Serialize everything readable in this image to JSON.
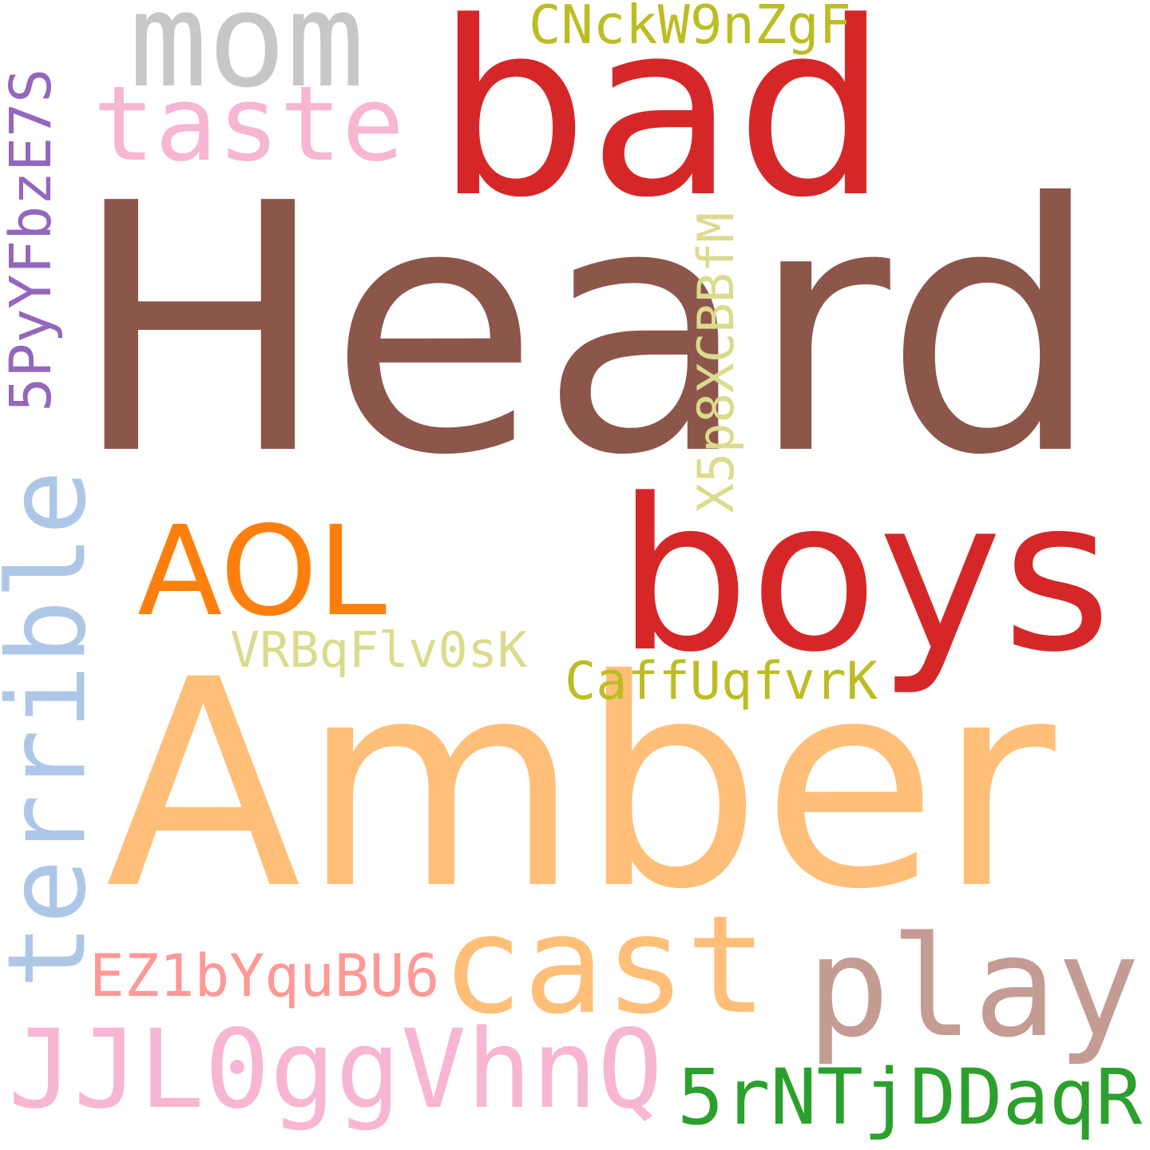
{
  "words": [
    {
      "id": "heard",
      "text": "Heard",
      "color": "#8c564b"
    },
    {
      "id": "amber",
      "text": "Amber",
      "color": "#ffbf79"
    },
    {
      "id": "bad",
      "text": "bad",
      "color": "#d62728"
    },
    {
      "id": "boys",
      "text": "boys",
      "color": "#d62728"
    },
    {
      "id": "mom",
      "text": "mom",
      "color": "#c7c7c7"
    },
    {
      "id": "taste",
      "text": "taste",
      "color": "#f7b6d2"
    },
    {
      "id": "cnckw9nzgf",
      "text": "CNckW9nZgF",
      "color": "#bcbd22"
    },
    {
      "id": "5pyyfbze7s",
      "text": "5PyYFbzE7S",
      "color": "#9467bd"
    },
    {
      "id": "x5p8xcbbfm",
      "text": "X5p8XCBBfM",
      "color": "#dbdb8d"
    },
    {
      "id": "aol",
      "text": "AOL",
      "color": "#ff7f0e"
    },
    {
      "id": "terrible",
      "text": "terrible",
      "color": "#aec7e8"
    },
    {
      "id": "vrbqflv0sk",
      "text": "VRBqFlv0sK",
      "color": "#dbdb8d"
    },
    {
      "id": "caffuqfvrk",
      "text": "CaffUqfvrK",
      "color": "#bcbd22"
    },
    {
      "id": "cast",
      "text": "cast",
      "color": "#ffbf79"
    },
    {
      "id": "play",
      "text": "play",
      "color": "#c49c94"
    },
    {
      "id": "ez1byqubu6",
      "text": "EZ1bYquBU6",
      "color": "#ff9896"
    },
    {
      "id": "jjl0ggvhnq",
      "text": "JJL0ggVhnQ",
      "color": "#f7b6d2"
    },
    {
      "id": "5rntjddaqr",
      "text": "5rNTjDDaqR",
      "color": "#2ca02c"
    }
  ]
}
